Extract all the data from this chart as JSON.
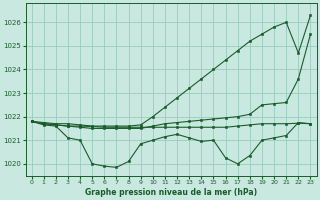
{
  "background_color": "#c8e8e0",
  "grid_color": "#99ccbb",
  "line_color": "#1a5c2a",
  "marker_color": "#1a5c2a",
  "xlabel": "Graphe pression niveau de la mer (hPa)",
  "ylim": [
    1019.5,
    1026.8
  ],
  "xlim": [
    -0.5,
    23.5
  ],
  "yticks": [
    1020,
    1021,
    1022,
    1023,
    1024,
    1025,
    1026
  ],
  "xticks": [
    0,
    1,
    2,
    3,
    4,
    5,
    6,
    7,
    8,
    9,
    10,
    11,
    12,
    13,
    14,
    15,
    16,
    17,
    18,
    19,
    20,
    21,
    22,
    23
  ],
  "series": [
    [
      1021.8,
      1021.75,
      1021.7,
      1021.7,
      1021.65,
      1021.6,
      1021.6,
      1021.6,
      1021.6,
      1021.65,
      1022.0,
      1022.4,
      1022.8,
      1023.2,
      1023.6,
      1024.0,
      1024.4,
      1024.8,
      1025.2,
      1025.5,
      1025.8,
      1026.0,
      1024.7,
      1026.3
    ],
    [
      1021.8,
      1021.7,
      1021.65,
      1021.6,
      1021.55,
      1021.5,
      1021.5,
      1021.5,
      1021.5,
      1021.5,
      1021.6,
      1021.7,
      1021.75,
      1021.8,
      1021.85,
      1021.9,
      1021.95,
      1022.0,
      1022.1,
      1022.5,
      1022.55,
      1022.6,
      1023.6,
      1025.5
    ],
    [
      1021.8,
      1021.7,
      1021.65,
      1021.6,
      1021.6,
      1021.58,
      1021.55,
      1021.55,
      1021.55,
      1021.55,
      1021.55,
      1021.55,
      1021.55,
      1021.55,
      1021.55,
      1021.55,
      1021.55,
      1021.6,
      1021.65,
      1021.7,
      1021.7,
      1021.7,
      1021.72,
      1021.7
    ],
    [
      1021.8,
      1021.65,
      1021.6,
      1021.1,
      1021.0,
      1020.0,
      1019.9,
      1019.85,
      1020.1,
      1020.85,
      1021.0,
      1021.15,
      1021.25,
      1021.1,
      1020.95,
      1021.0,
      1020.25,
      1020.0,
      1020.35,
      1021.0,
      1021.1,
      1021.2,
      1021.75,
      1021.7
    ]
  ]
}
